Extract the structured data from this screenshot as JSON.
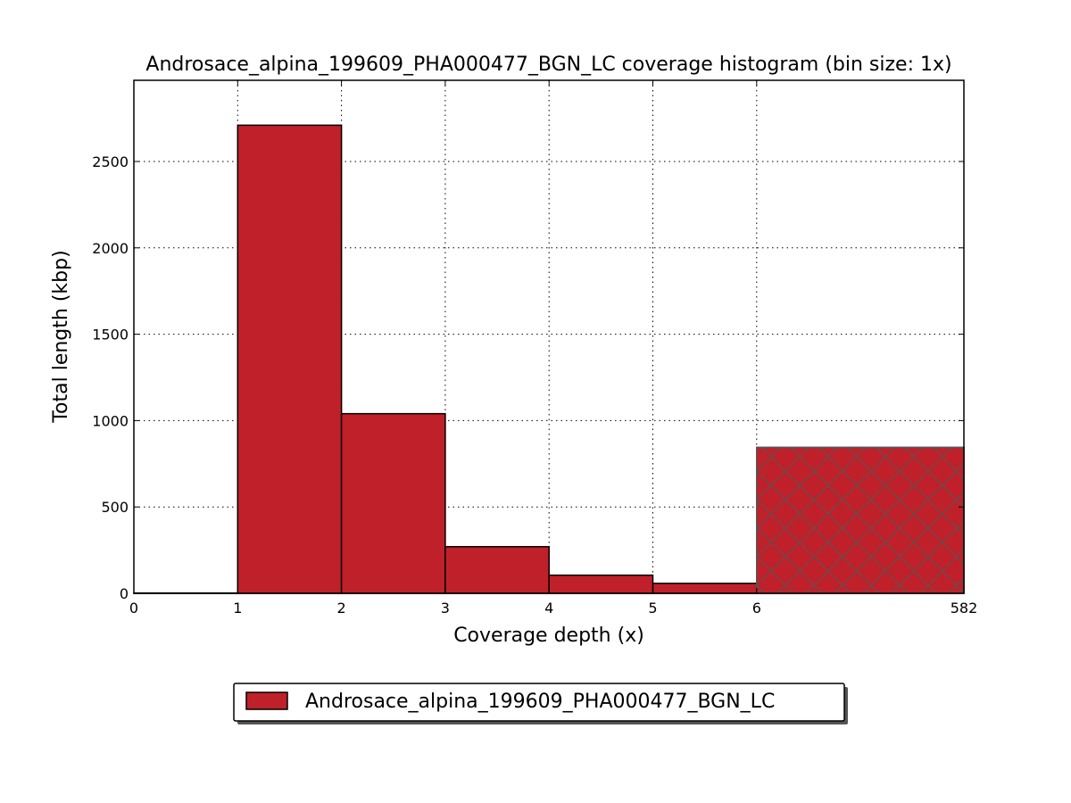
{
  "chart_data": {
    "type": "bar",
    "title": "Androsace_alpina_199609_PHA000477_BGN_LC coverage histogram (bin size: 1x)",
    "xlabel": "Coverage depth (x)",
    "ylabel": "Total length (kbp)",
    "x_ticks": [
      "0",
      "1",
      "2",
      "3",
      "4",
      "5",
      "6",
      "582"
    ],
    "y_ticks": [
      0,
      500,
      1000,
      1500,
      2000,
      2500
    ],
    "ylim": [
      0,
      2970
    ],
    "grid": true,
    "legend_position": "bottom-center",
    "bar_color": "#c0202a",
    "overflow_bin_hatch": "cross",
    "series": [
      {
        "name": "Androsace_alpina_199609_PHA000477_BGN_LC",
        "bins": [
          {
            "x_start": "0",
            "x_end": "1",
            "value": 2
          },
          {
            "x_start": "1",
            "x_end": "2",
            "value": 2710
          },
          {
            "x_start": "2",
            "x_end": "3",
            "value": 1040
          },
          {
            "x_start": "3",
            "x_end": "4",
            "value": 270
          },
          {
            "x_start": "4",
            "x_end": "5",
            "value": 105
          },
          {
            "x_start": "5",
            "x_end": "6",
            "value": 58
          },
          {
            "x_start": "6",
            "x_end": "582",
            "value": 845,
            "overflow": true
          }
        ]
      }
    ]
  }
}
